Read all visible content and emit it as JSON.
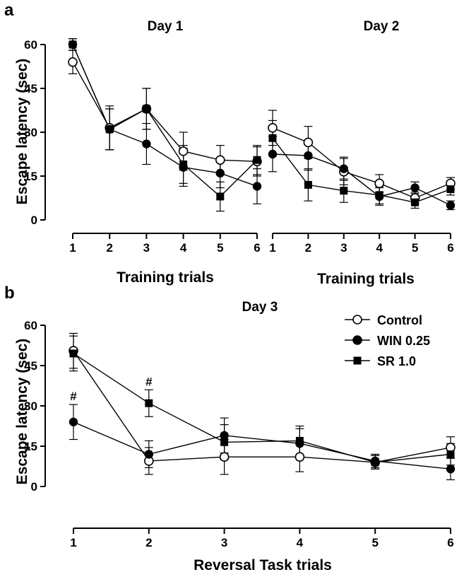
{
  "colors": {
    "ink": "#000000",
    "open_marker_fill": "#ffffff"
  },
  "legend": {
    "placement": "top-right",
    "entries": [
      {
        "name": "Control",
        "marker": "open-circle"
      },
      {
        "name": "WIN 0.25",
        "marker": "filled-circle"
      },
      {
        "name": "SR 1.0",
        "marker": "filled-square"
      }
    ]
  },
  "chart_data": [
    {
      "panel_letter": "a",
      "type": "line",
      "title": "Day 1",
      "xlabel": "Training trials",
      "ylabel": "Escape latency (sec)",
      "x": [
        1,
        2,
        3,
        4,
        5,
        6
      ],
      "ylim": [
        0,
        60
      ],
      "yticks": [
        0,
        15,
        30,
        45,
        60
      ],
      "grid": false,
      "series": [
        {
          "name": "Control",
          "marker": "open-circle",
          "values": [
            54,
            31.5,
            38,
            23.5,
            20.5,
            20
          ],
          "err": [
            4,
            7.5,
            7,
            6.5,
            5,
            5
          ]
        },
        {
          "name": "WIN 0.25",
          "marker": "filled-circle",
          "values": [
            60,
            31,
            26,
            18,
            16,
            11.5
          ],
          "err": [
            2,
            7,
            7,
            6.5,
            5,
            6
          ]
        },
        {
          "name": "SR 1.0",
          "marker": "filled-square",
          "values": [
            60,
            31,
            38,
            19,
            8,
            20.5
          ],
          "err": [
            2,
            7,
            7,
            6.5,
            5,
            5
          ]
        }
      ]
    },
    {
      "type": "line",
      "title": "Day 2",
      "xlabel": "Training trials",
      "ylabel": "",
      "x": [
        1,
        2,
        3,
        4,
        5,
        6
      ],
      "ylim": [
        0,
        60
      ],
      "yticks": [
        0,
        15,
        30,
        45,
        60
      ],
      "grid": false,
      "series": [
        {
          "name": "Control",
          "marker": "open-circle",
          "values": [
            31.5,
            26.5,
            16.5,
            12.5,
            7.5,
            12.5
          ],
          "err": [
            6,
            5.5,
            4.5,
            3,
            2,
            2
          ]
        },
        {
          "name": "WIN 0.25",
          "marker": "filled-circle",
          "values": [
            22.5,
            22,
            17.5,
            8,
            11,
            5
          ],
          "err": [
            6,
            5,
            4,
            3,
            2,
            1.5
          ]
        },
        {
          "name": "SR 1.0",
          "marker": "filled-square",
          "values": [
            28,
            12,
            10,
            8.5,
            6,
            10.5
          ],
          "err": [
            6,
            5.5,
            4,
            3,
            2,
            2
          ]
        }
      ]
    },
    {
      "panel_letter": "b",
      "type": "line",
      "title": "Day 3",
      "xlabel": "Reversal Task trials",
      "ylabel": "Escape latency (sec)",
      "x": [
        1,
        2,
        3,
        4,
        5,
        6
      ],
      "ylim": [
        0,
        60
      ],
      "yticks": [
        0,
        15,
        30,
        45,
        60
      ],
      "grid": false,
      "annotations": [
        {
          "text": "#",
          "x": 1,
          "y": 31
        },
        {
          "text": "#",
          "x": 2,
          "y": 36.5
        }
      ],
      "series": [
        {
          "name": "Control",
          "marker": "open-circle",
          "values": [
            50.5,
            9.5,
            11,
            11,
            9,
            14.5
          ],
          "err": [
            6.5,
            5,
            6.5,
            5.5,
            2.5,
            4
          ]
        },
        {
          "name": "WIN 0.25",
          "marker": "filled-circle",
          "values": [
            24,
            12,
            19,
            16,
            9.5,
            6.5
          ],
          "err": [
            6.5,
            5,
            6.5,
            5.5,
            2.5,
            4
          ]
        },
        {
          "name": "SR 1.0",
          "marker": "filled-square",
          "values": [
            49.5,
            31,
            16.5,
            17,
            9,
            12
          ],
          "err": [
            6.5,
            5,
            6.5,
            5.5,
            2.5,
            4
          ]
        }
      ]
    }
  ]
}
